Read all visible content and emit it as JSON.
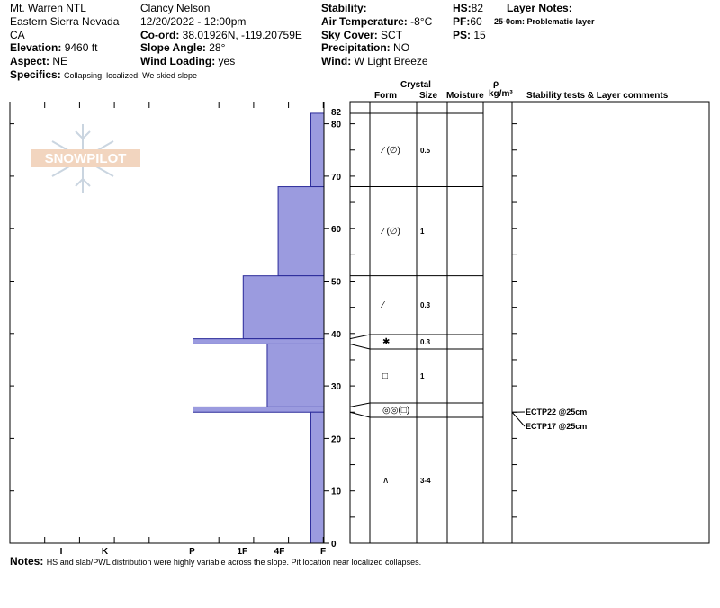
{
  "header": {
    "location": "Mt. Warren NTL",
    "range": "Eastern Sierra Nevada",
    "state": "CA",
    "elevation": {
      "label": "Elevation:",
      "value": "9460 ft"
    },
    "aspect": {
      "label": "Aspect:",
      "value": "NE"
    },
    "specifics": {
      "label": "Specifics:",
      "value": "Collapsing, localized; We skied slope"
    },
    "observer": "Clancy Nelson",
    "datetime": "12/20/2022 - 12:00pm",
    "coord": {
      "label": "Co-ord:",
      "value": "38.01926N, -119.20759E"
    },
    "slope_angle": {
      "label": "Slope Angle:",
      "value": "28°"
    },
    "wind_loading": {
      "label": "Wind Loading:",
      "value": "yes"
    },
    "stability": {
      "label": "Stability:",
      "value": ""
    },
    "air_temp": {
      "label": "Air Temperature:",
      "value": "-8°C"
    },
    "sky_cover": {
      "label": "Sky Cover:",
      "value": "SCT"
    },
    "precipitation": {
      "label": "Precipitation:",
      "value": "NO"
    },
    "wind": {
      "label": "Wind:",
      "value": "W Light Breeze"
    },
    "hs": {
      "label": "HS:",
      "value": "82"
    },
    "pf": {
      "label": "PF:",
      "value": "60"
    },
    "ps": {
      "label": "PS:",
      "value": "15"
    },
    "layer_notes": {
      "label": "Layer Notes:",
      "value": "25-0cm: Problematic layer"
    }
  },
  "watermark": "SNOWPILOT",
  "columns": {
    "crystal": "Crystal",
    "form": "Form",
    "size": "Size",
    "moisture": "Moisture",
    "rho": "ρ",
    "density_unit": "kg/m³",
    "comments": "Stability tests & Layer comments"
  },
  "notes": {
    "label": "Notes:",
    "value": "HS and slab/PWL distribution were highly variable across the slope. Pit location near localized collapses."
  },
  "chart_data": {
    "type": "bar",
    "orientation": "horizontal",
    "ylim": [
      0,
      82
    ],
    "yticks": [
      0,
      10,
      20,
      30,
      40,
      50,
      60,
      70,
      80
    ],
    "hs_tick": "82",
    "hardness_scale": [
      "F",
      "4F",
      "1F",
      "P",
      "K",
      "I"
    ],
    "hardness_ticks": [
      {
        "label": "I",
        "value": 6
      },
      {
        "label": "K",
        "value": 5
      },
      {
        "label": "P",
        "value": 3
      },
      {
        "label": "1F",
        "value": 1.85
      },
      {
        "label": "4F",
        "value": 1
      },
      {
        "label": "F",
        "value": 0
      }
    ],
    "layers": [
      {
        "top": 82,
        "bottom": 68,
        "hardness": "F",
        "hardness_value": 0.3,
        "form": "⁄ (∅)",
        "size": "0.5"
      },
      {
        "top": 68,
        "bottom": 51,
        "hardness": "4F",
        "hardness_value": 1.05,
        "form": "⁄ (∅)",
        "size": "1"
      },
      {
        "top": 51,
        "bottom": 39,
        "hardness": "1F",
        "hardness_value": 1.85,
        "form": "⁄",
        "size": "0.3"
      },
      {
        "top": 39,
        "bottom": 38,
        "hardness": "P",
        "hardness_value": 3.0,
        "form": "✱",
        "size": "0.3"
      },
      {
        "top": 38,
        "bottom": 26,
        "hardness": "4F",
        "hardness_value": 1.3,
        "form": "□",
        "size": "1"
      },
      {
        "top": 26,
        "bottom": 25,
        "hardness": "P",
        "hardness_value": 3.0,
        "form": "◎◎(□)",
        "size": ""
      },
      {
        "top": 25,
        "bottom": 0,
        "hardness": "F",
        "hardness_value": 0.3,
        "form": "∧",
        "size": "3-4"
      }
    ],
    "tests": [
      {
        "label": "ECTP22 @25cm",
        "depth": 25
      },
      {
        "label": "ECTP17 @25cm",
        "depth": 25
      }
    ]
  }
}
